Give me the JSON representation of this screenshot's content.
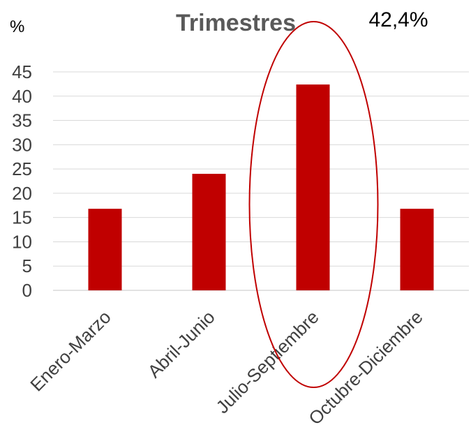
{
  "chart_data": {
    "type": "bar",
    "title": "Trimestres",
    "ylabel": "%",
    "xlabel": "",
    "categories": [
      "Enero-Marzo",
      "Abril-Junio",
      "Julio-Septiembre",
      "Octubre-Diciembre"
    ],
    "values": [
      16.8,
      24.0,
      42.4,
      16.8
    ],
    "ylim": [
      0,
      45
    ],
    "yticks": [
      "0",
      "5",
      "10",
      "15",
      "20",
      "25",
      "30",
      "35",
      "40",
      "45"
    ],
    "grid": true,
    "legend": "none",
    "annotation": {
      "text": "42,4%",
      "target_category": "Julio-Septiembre"
    },
    "colors": {
      "bar": "#c00000",
      "highlight": "#c00000",
      "grid": "#d9d9d9"
    }
  }
}
